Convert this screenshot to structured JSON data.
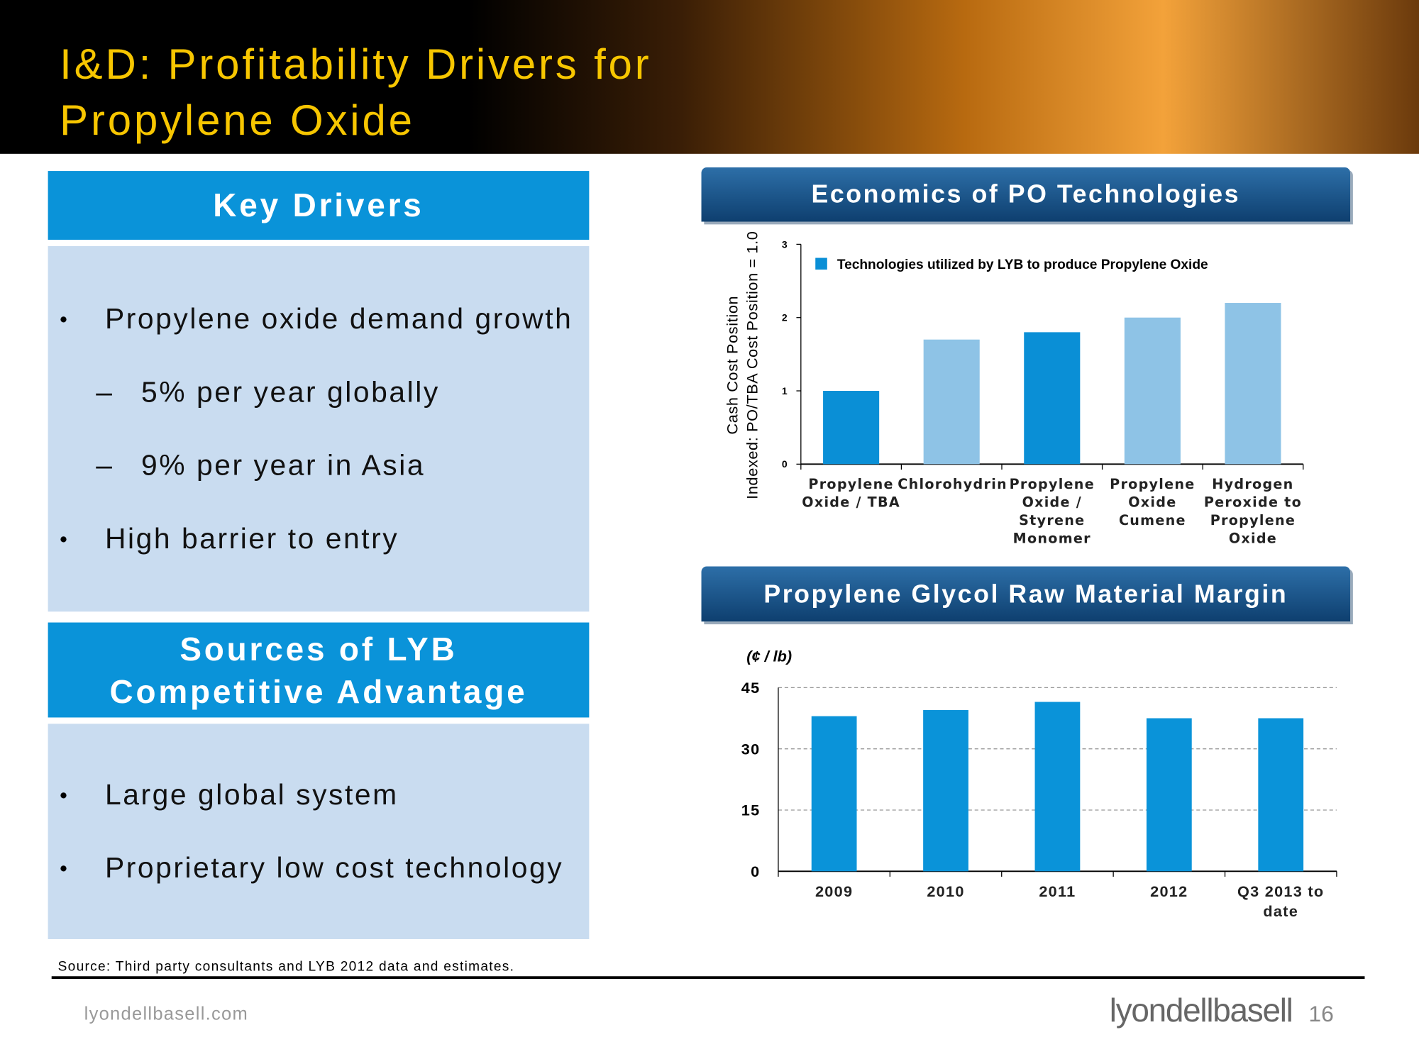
{
  "header": {
    "title": "I&D: Profitability Drivers for Propylene Oxide"
  },
  "key_drivers": {
    "title": "Key Drivers",
    "items": [
      "Propylene oxide demand growth",
      "5% per year globally",
      "9% per year in Asia",
      "High barrier to entry"
    ]
  },
  "advantage": {
    "title": "Sources of LYB Competitive Advantage",
    "items": [
      "Large global system",
      "Proprietary low cost technology"
    ]
  },
  "chart_data": [
    {
      "type": "bar",
      "title": "Economics of PO Technologies",
      "ylabel": [
        "Cash Cost Position",
        "Indexed: PO/TBA Cost Position = 1.0"
      ],
      "categories": [
        "Propylene Oxide / TBA",
        "Chlorohydrin",
        "Propylene Oxide / Styrene Monomer",
        "Propylene Oxide Cumene",
        "Hydrogen Peroxide to Propylene Oxide"
      ],
      "series": [
        {
          "name": "Technologies utilized by LYB to produce Propylene Oxide",
          "color": "#0a8fd6",
          "values": [
            1.0,
            1.7,
            1.8,
            2.0,
            2.2
          ]
        }
      ],
      "bar_colors": [
        "#0a8fd6",
        "#8ec3e6",
        "#0a8fd6",
        "#8ec3e6",
        "#8ec3e6"
      ],
      "ylim": [
        0,
        3
      ],
      "yticks": [
        0,
        1,
        2,
        3
      ],
      "grid": false,
      "legend": "top-left"
    },
    {
      "type": "bar",
      "title": "Propylene Glycol Raw Material Margin",
      "unit_label": "(¢ / lb)",
      "categories": [
        "2009",
        "2010",
        "2011",
        "2012",
        "Q3 2013 to date"
      ],
      "series": [
        {
          "name": null,
          "color": "#0a93d9",
          "values": [
            38,
            39.5,
            41.5,
            37.5,
            37.5
          ]
        }
      ],
      "ylim": [
        0,
        45
      ],
      "yticks": [
        0,
        15,
        30,
        45
      ],
      "grid": true
    }
  ],
  "source": "Source: Third party consultants and LYB 2012 data and estimates.",
  "footer": {
    "website": "lyondellbasell.com",
    "logo": "lyondellbasell",
    "page": "16"
  }
}
